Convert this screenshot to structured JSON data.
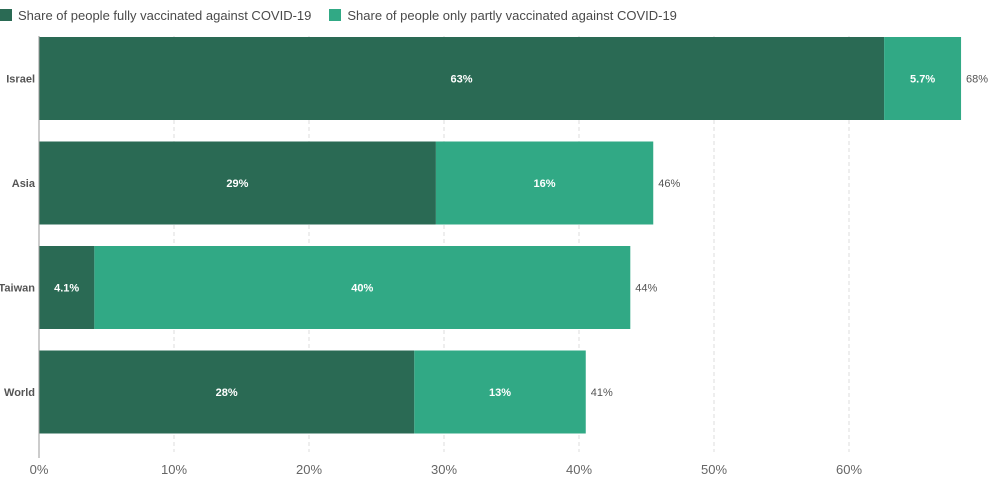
{
  "chart_data": {
    "type": "bar",
    "orientation": "horizontal",
    "stacked": true,
    "categories": [
      "Israel",
      "Asia",
      "Taiwan",
      "World"
    ],
    "series": [
      {
        "name": "Share of people fully vaccinated against COVID-19",
        "color": "#2a6a54",
        "values": [
          62.6,
          29.4,
          4.1,
          27.8
        ],
        "labels": [
          "63%",
          "29%",
          "4.1%",
          "28%"
        ]
      },
      {
        "name": "Share of people only partly vaccinated against COVID-19",
        "color": "#31a985",
        "values": [
          5.7,
          16.1,
          39.7,
          12.7
        ],
        "labels": [
          "5.7%",
          "16%",
          "40%",
          "13%"
        ]
      }
    ],
    "totals": [
      "68%",
      "46%",
      "44%",
      "41%"
    ],
    "xlim": [
      0,
      70
    ],
    "xticks": [
      0,
      10,
      20,
      30,
      40,
      50,
      60
    ],
    "xtick_labels": [
      "0%",
      "10%",
      "20%",
      "30%",
      "40%",
      "50%",
      "60%"
    ],
    "grid": true,
    "legend_position": "top-left"
  }
}
